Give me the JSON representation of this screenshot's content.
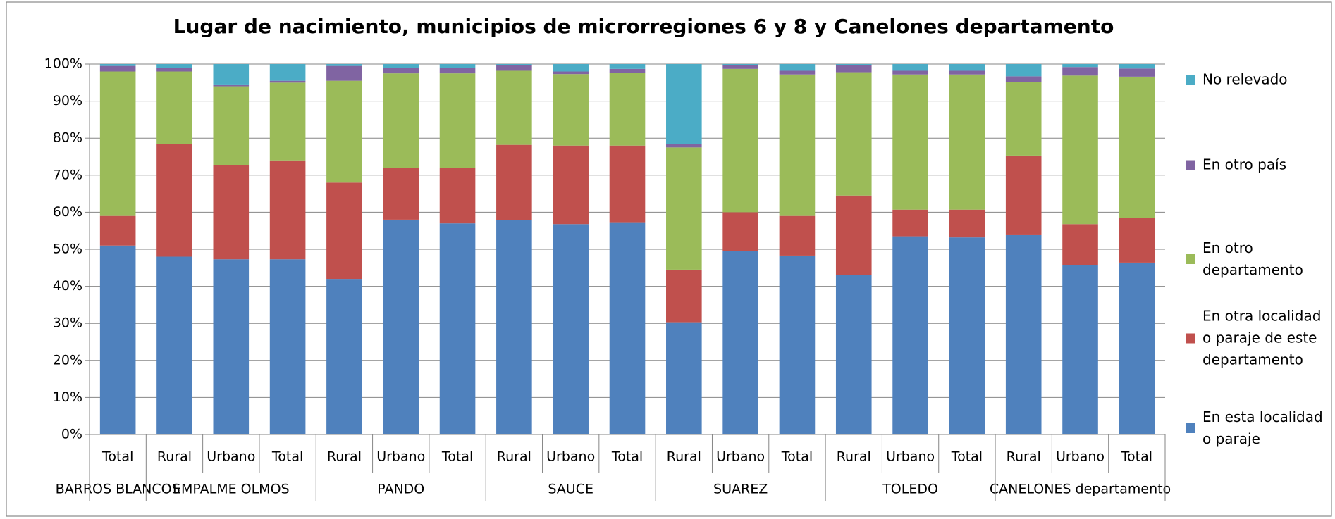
{
  "chart_data": {
    "type": "stacked_bar",
    "title": "Lugar de nacimiento, municipios de microrregiones 6 y 8 y Canelones departamento",
    "groups": [
      {
        "label": "BARROS BLANCOS",
        "categories": [
          "Total"
        ]
      },
      {
        "label": "EMPALME OLMOS",
        "categories": [
          "Rural",
          "Urbano",
          "Total"
        ]
      },
      {
        "label": "PANDO",
        "categories": [
          "Rural",
          "Urbano",
          "Total"
        ]
      },
      {
        "label": "SAUCE",
        "categories": [
          "Rural",
          "Urbano",
          "Total"
        ]
      },
      {
        "label": "SUAREZ",
        "categories": [
          "Rural",
          "Urbano",
          "Total"
        ]
      },
      {
        "label": "TOLEDO",
        "categories": [
          "Rural",
          "Urbano",
          "Total"
        ]
      },
      {
        "label": "CANELONES departamento",
        "categories": [
          "Rural",
          "Urbano",
          "Total"
        ]
      }
    ],
    "series": [
      {
        "name": "En esta localidad o paraje",
        "color": "#4f81bd",
        "values": [
          51,
          48,
          47.3,
          47.3,
          42,
          58,
          57,
          57.8,
          56.8,
          57.3,
          30.3,
          49.5,
          48.3,
          43,
          53.5,
          53.2,
          54,
          45.7,
          46.4
        ]
      },
      {
        "name": "En otra localidad o paraje de este departamento",
        "color": "#c0504d",
        "values": [
          8,
          30.5,
          25.5,
          26.7,
          26,
          14,
          15,
          20.4,
          21.2,
          20.7,
          14.2,
          10.5,
          10.7,
          21.5,
          7.2,
          7.5,
          21.3,
          11.1,
          12.1
        ]
      },
      {
        "name": "En otro departamento",
        "color": "#9bbb59",
        "values": [
          39,
          19.5,
          21.2,
          21,
          27.5,
          25.5,
          25.5,
          20,
          19.3,
          19.7,
          33,
          38.7,
          38.2,
          33.3,
          36.5,
          36.5,
          19.9,
          40.1,
          38.1
        ]
      },
      {
        "name": "En otro país",
        "color": "#8064a2",
        "values": [
          1.5,
          1,
          0.5,
          0.5,
          4,
          1.5,
          1.5,
          1.5,
          0.7,
          1,
          1,
          1,
          1,
          2,
          1,
          1,
          1.5,
          2.3,
          2.2
        ]
      },
      {
        "name": "No relevado",
        "color": "#4bacc6",
        "values": [
          0.5,
          1,
          5.5,
          4.5,
          0.5,
          1,
          1,
          0.3,
          2,
          1.3,
          21.5,
          0.3,
          1.8,
          0.2,
          1.8,
          1.8,
          3.3,
          0.8,
          1.2
        ]
      }
    ],
    "ylim": [
      0,
      100
    ],
    "yticks": [
      {
        "value": 0,
        "label": "0%"
      },
      {
        "value": 10,
        "label": "10%"
      },
      {
        "value": 20,
        "label": "20%"
      },
      {
        "value": 30,
        "label": "30%"
      },
      {
        "value": 40,
        "label": "40%"
      },
      {
        "value": 50,
        "label": "50%"
      },
      {
        "value": 60,
        "label": "60%"
      },
      {
        "value": 70,
        "label": "70%"
      },
      {
        "value": 80,
        "label": "80%"
      },
      {
        "value": 90,
        "label": "90%"
      },
      {
        "value": 100,
        "label": "100%"
      }
    ],
    "grid": true,
    "legend": "right"
  }
}
